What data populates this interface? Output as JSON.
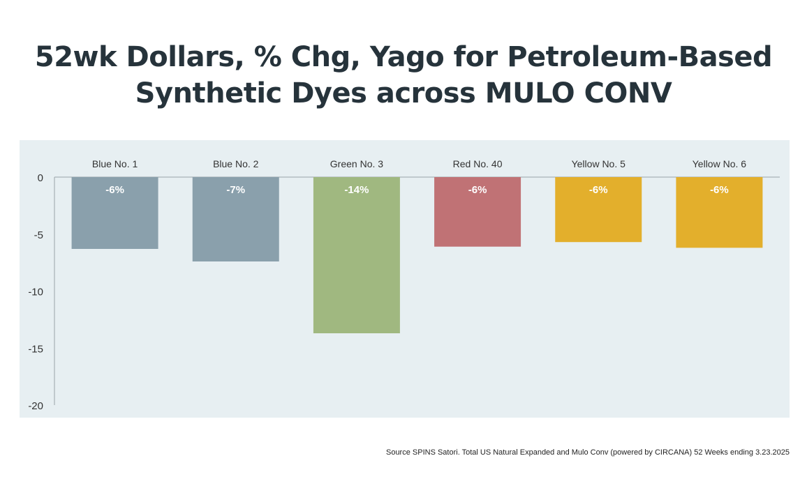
{
  "title_line1": "52wk Dollars, % Chg, Yago for Petroleum-Based",
  "title_line2": "Synthetic Dyes across MULO CONV",
  "source": "Source SPINS Satori. Total US Natural Expanded and Mulo Conv (powered by CIRCANA) 52 Weeks ending 3.23.2025",
  "colors": {
    "blue": "#8aa0ac",
    "green": "#a0b880",
    "red": "#c07275",
    "yellow": "#e3af2c",
    "plot_bg": "#e7eff2"
  },
  "chart_data": {
    "type": "bar",
    "title": "52wk Dollars, % Chg, Yago for Petroleum-Based Synthetic Dyes across MULO CONV",
    "categories": [
      "Blue No. 1",
      "Blue No. 2",
      "Green No. 3",
      "Red No. 40",
      "Yellow No. 5",
      "Yellow No. 6"
    ],
    "values": [
      -6.3,
      -7.4,
      -13.7,
      -6.1,
      -5.7,
      -6.2
    ],
    "data_labels": [
      "-6%",
      "-7%",
      "-14%",
      "-6%",
      "-6%",
      "-6%"
    ],
    "bar_colors": [
      "#8aa0ac",
      "#8aa0ac",
      "#a0b880",
      "#c07275",
      "#e3af2c",
      "#e3af2c"
    ],
    "ylim": [
      -20,
      0
    ],
    "yticks": [
      "0",
      "-5",
      "-10",
      "-15",
      "-20"
    ],
    "category_label_position": "top",
    "grid": false,
    "legend": false
  }
}
